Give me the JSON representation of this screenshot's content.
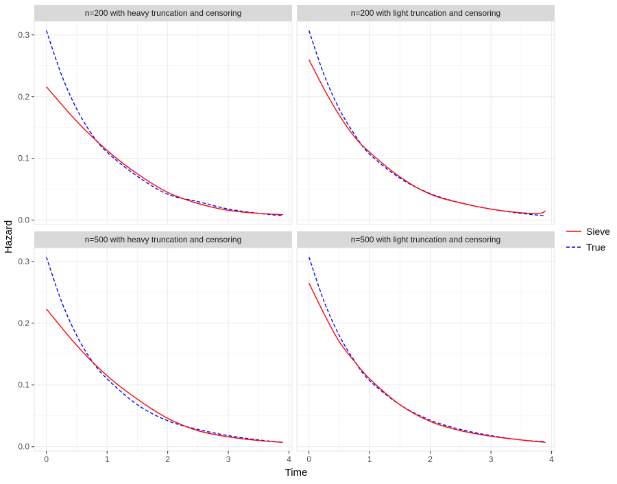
{
  "chart_data": {
    "type": "line",
    "xlabel": "Time",
    "ylabel": "Hazard",
    "xlim": [
      -0.2,
      4.05
    ],
    "ylim": [
      -0.007,
      0.322
    ],
    "x_ticks": [
      0,
      1,
      2,
      3,
      4
    ],
    "x_tick_labels": [
      "0",
      "1",
      "2",
      "3",
      "4"
    ],
    "y_ticks": [
      0.0,
      0.1,
      0.2,
      0.3
    ],
    "y_tick_labels": [
      "0.0",
      "0.1",
      "0.2",
      "0.3"
    ],
    "grid": true,
    "legend_position": "right",
    "legend": [
      {
        "name": "Sieve",
        "color": "#ff0000",
        "style": "solid"
      },
      {
        "name": "True",
        "color": "#0000ff",
        "style": "dashed"
      }
    ],
    "panels": [
      {
        "title": "n=200 with heavy truncation and censoring",
        "series": [
          {
            "name": "Sieve",
            "x": [
              0,
              0.5,
              1,
              1.5,
              2,
              2.5,
              3,
              3.5,
              3.9
            ],
            "y": [
              0.216,
              0.16,
              0.113,
              0.075,
              0.045,
              0.027,
              0.016,
              0.011,
              0.009
            ]
          },
          {
            "name": "True",
            "x": [
              0,
              0.25,
              0.5,
              0.75,
              1,
              1.5,
              2,
              2.5,
              3,
              3.5,
              3.9
            ],
            "y": [
              0.307,
              0.235,
              0.18,
              0.139,
              0.11,
              0.071,
              0.042,
              0.03,
              0.018,
              0.011,
              0.007
            ]
          }
        ]
      },
      {
        "title": "n=200 with light truncation and censoring",
        "series": [
          {
            "name": "Sieve",
            "x": [
              0,
              0.25,
              0.5,
              0.75,
              1,
              1.5,
              2,
              2.5,
              3,
              3.5,
              3.8,
              3.9
            ],
            "y": [
              0.26,
              0.212,
              0.17,
              0.135,
              0.11,
              0.07,
              0.042,
              0.028,
              0.018,
              0.012,
              0.011,
              0.015
            ]
          },
          {
            "name": "True",
            "x": [
              0,
              0.25,
              0.5,
              0.75,
              1,
              1.5,
              2,
              2.5,
              3,
              3.5,
              3.9
            ],
            "y": [
              0.307,
              0.235,
              0.18,
              0.139,
              0.107,
              0.068,
              0.043,
              0.028,
              0.018,
              0.011,
              0.007
            ]
          }
        ]
      },
      {
        "title": "n=500 with heavy truncation and censoring",
        "series": [
          {
            "name": "Sieve",
            "x": [
              0,
              0.5,
              1,
              1.5,
              2,
              2.5,
              3,
              3.5,
              3.9
            ],
            "y": [
              0.223,
              0.164,
              0.115,
              0.077,
              0.046,
              0.026,
              0.016,
              0.01,
              0.007
            ]
          },
          {
            "name": "True",
            "x": [
              0,
              0.25,
              0.5,
              0.75,
              1,
              1.5,
              2,
              2.5,
              3,
              3.5,
              3.9
            ],
            "y": [
              0.307,
              0.235,
              0.18,
              0.139,
              0.11,
              0.068,
              0.042,
              0.028,
              0.018,
              0.011,
              0.007
            ]
          }
        ]
      },
      {
        "title": "n=500 with light truncation and censoring",
        "series": [
          {
            "name": "Sieve",
            "x": [
              0,
              0.25,
              0.5,
              0.75,
              1,
              1.5,
              2,
              2.5,
              3,
              3.5,
              3.9
            ],
            "y": [
              0.265,
              0.215,
              0.17,
              0.138,
              0.11,
              0.068,
              0.041,
              0.026,
              0.017,
              0.011,
              0.007
            ]
          },
          {
            "name": "True",
            "x": [
              0,
              0.25,
              0.5,
              0.75,
              1,
              1.5,
              2,
              2.5,
              3,
              3.5,
              3.9
            ],
            "y": [
              0.307,
              0.235,
              0.18,
              0.139,
              0.107,
              0.068,
              0.043,
              0.028,
              0.018,
              0.011,
              0.008
            ]
          }
        ]
      }
    ]
  }
}
